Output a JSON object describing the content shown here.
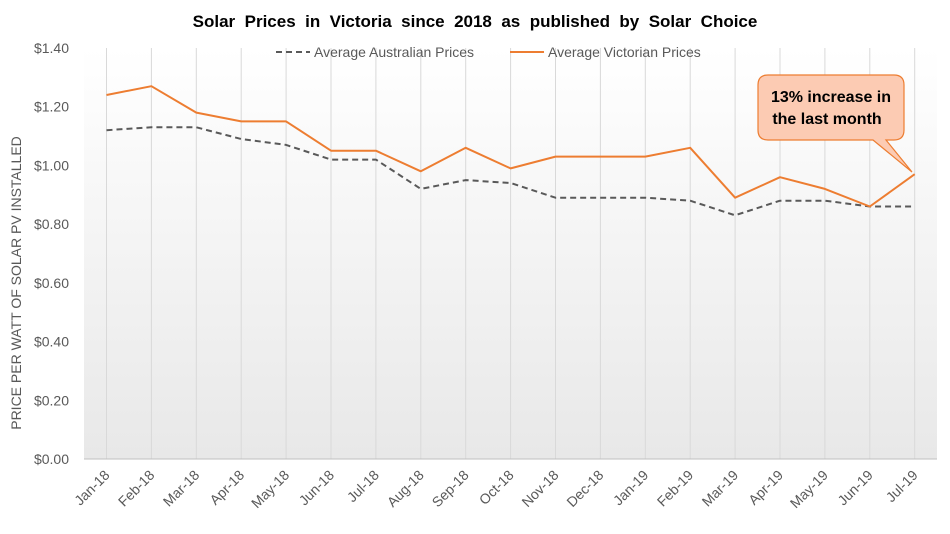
{
  "chart_data": {
    "type": "line",
    "title": "Solar  Prices  in  Victoria  since  2018  as  published  by  Solar  Choice",
    "ylabel": "PRICE PER WATT OF SOLAR PV INSTALLED",
    "xlabel": "",
    "ylim": [
      0,
      1.4
    ],
    "yticks": [
      "$0.00",
      "$0.20",
      "$0.40",
      "$0.60",
      "$0.80",
      "$1.00",
      "$1.20",
      "$1.40"
    ],
    "yticks_values": [
      0,
      0.2,
      0.4,
      0.6,
      0.8,
      1.0,
      1.2,
      1.4
    ],
    "categories": [
      "Jan-18",
      "Feb-18",
      "Mar-18",
      "Apr-18",
      "May-18",
      "Jun-18",
      "Jul-18",
      "Aug-18",
      "Sep-18",
      "Oct-18",
      "Nov-18",
      "Dec-18",
      "Jan-19",
      "Feb-19",
      "Mar-19",
      "Apr-19",
      "May-19",
      "Jun-19",
      "Jul-19"
    ],
    "series": [
      {
        "name": "Average Australian Prices",
        "color": "#595959",
        "style": "dashed",
        "values": [
          1.12,
          1.13,
          1.13,
          1.09,
          1.07,
          1.02,
          1.02,
          0.92,
          0.95,
          0.94,
          0.89,
          0.89,
          0.89,
          0.88,
          0.83,
          0.88,
          0.88,
          0.86,
          0.86
        ]
      },
      {
        "name": "Average Victorian Prices",
        "color": "#ED7D31",
        "style": "solid",
        "values": [
          1.24,
          1.27,
          1.18,
          1.15,
          1.15,
          1.05,
          1.05,
          0.98,
          1.06,
          0.99,
          1.03,
          1.03,
          1.03,
          1.06,
          0.89,
          0.96,
          0.92,
          0.86,
          0.97
        ]
      }
    ],
    "annotation": {
      "lines": [
        "13% increase in",
        "the last month"
      ],
      "fill": "#FCCBB3",
      "border": "#ED7D31"
    },
    "legend_position": "top-center",
    "grid": "vertical"
  }
}
